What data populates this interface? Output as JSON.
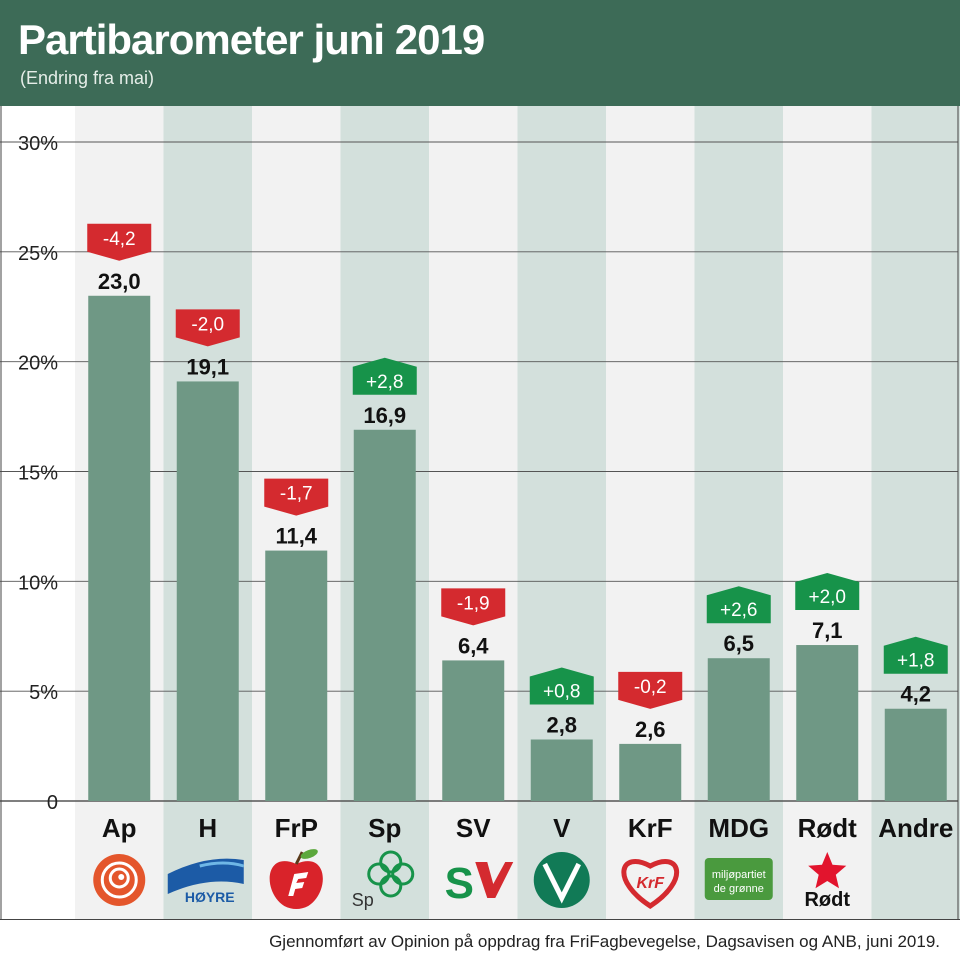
{
  "header": {
    "title": "Partibarometer juni 2019",
    "subtitle": "(Endring fra mai)"
  },
  "footer": {
    "source": "Gjennomført av Opinion på oppdrag fra FriFagbevegelse, Dagsavisen og ANB, juni 2019."
  },
  "colors": {
    "header_bg": "#3d6b57",
    "bar": "#6f9885",
    "col_light": "#f2f2f2",
    "col_dark": "#d3e0dc",
    "badge_neg": "#d42a2f",
    "badge_pos": "#17934a"
  },
  "chart_data": {
    "type": "bar",
    "title": "Partibarometer juni 2019",
    "subtitle": "(Endring fra mai)",
    "ylim": [
      0,
      30
    ],
    "yticks": [
      "0",
      "5%",
      "10%",
      "15%",
      "20%",
      "25%",
      "30%"
    ],
    "ytick_values": [
      0,
      5,
      10,
      15,
      20,
      25,
      30
    ],
    "grid": true,
    "categories": [
      "Ap",
      "H",
      "FrP",
      "Sp",
      "SV",
      "V",
      "KrF",
      "MDG",
      "Rødt",
      "Andre"
    ],
    "values": [
      23.0,
      19.1,
      11.4,
      16.9,
      6.4,
      2.8,
      2.6,
      6.5,
      7.1,
      4.2
    ],
    "value_labels": [
      "23,0",
      "19,1",
      "11,4",
      "16,9",
      "6,4",
      "2,8",
      "2,6",
      "6,5",
      "7,1",
      "4,2"
    ],
    "changes": [
      -4.2,
      -2.0,
      -1.7,
      2.8,
      -1.9,
      0.8,
      -0.2,
      2.6,
      2.0,
      1.8
    ],
    "change_labels": [
      "-4,2",
      "-2,0",
      "-1,7",
      "+2,8",
      "-1,9",
      "+0,8",
      "-0,2",
      "+2,6",
      "+2,0",
      "+1,8"
    ]
  },
  "logos": [
    {
      "party": "Ap",
      "icon": "rose-logo-icon",
      "text": ""
    },
    {
      "party": "H",
      "icon": "hoyre-logo-icon",
      "text": "HØYRE"
    },
    {
      "party": "FrP",
      "icon": "apple-logo-icon",
      "text": ""
    },
    {
      "party": "Sp",
      "icon": "clover-logo-icon",
      "text": "Sp"
    },
    {
      "party": "SV",
      "icon": "sv-logo-icon",
      "text": "SV"
    },
    {
      "party": "V",
      "icon": "v-logo-icon",
      "text": ""
    },
    {
      "party": "KrF",
      "icon": "heart-logo-icon",
      "text": "KrF"
    },
    {
      "party": "MDG",
      "icon": "mdg-logo-icon",
      "text": "miljøpartiet de grønne"
    },
    {
      "party": "Rødt",
      "icon": "star-logo-icon",
      "text": "Rødt"
    },
    {
      "party": "Andre",
      "icon": "",
      "text": ""
    }
  ]
}
